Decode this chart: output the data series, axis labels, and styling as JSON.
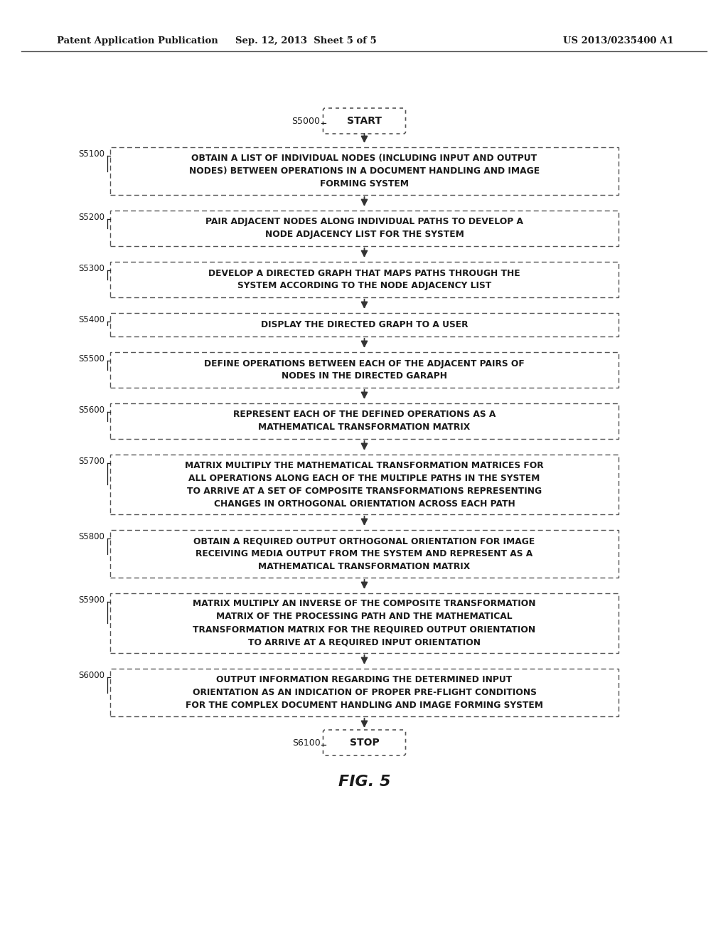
{
  "header_left": "Patent Application Publication",
  "header_mid": "Sep. 12, 2013  Sheet 5 of 5",
  "header_right": "US 2013/0235400 A1",
  "fig_label": "FIG. 5",
  "start_label": "S5000",
  "stop_label": "S6100",
  "background_color": "#ffffff",
  "box_facecolor": "#ffffff",
  "box_edgecolor": "#555555",
  "text_color": "#1a1a1a",
  "arrow_color": "#333333",
  "steps": [
    {
      "label": "S5100",
      "text": "OBTAIN A LIST OF INDIVIDUAL NODES (INCLUDING INPUT AND OUTPUT\nNODES) BETWEEN OPERATIONS IN A DOCUMENT HANDLING AND IMAGE\nFORMING SYSTEM",
      "nlines": 3
    },
    {
      "label": "S5200",
      "text": "PAIR ADJACENT NODES ALONG INDIVIDUAL PATHS TO DEVELOP A\nNODE ADJACENCY LIST FOR THE SYSTEM",
      "nlines": 2
    },
    {
      "label": "S5300",
      "text": "DEVELOP A DIRECTED GRAPH THAT MAPS PATHS THROUGH THE\nSYSTEM ACCORDING TO THE NODE ADJACENCY LIST",
      "nlines": 2
    },
    {
      "label": "S5400",
      "text": "DISPLAY THE DIRECTED GRAPH TO A USER",
      "nlines": 1
    },
    {
      "label": "S5500",
      "text": "DEFINE OPERATIONS BETWEEN EACH OF THE ADJACENT PAIRS OF\nNODES IN THE DIRECTED GARAPH",
      "nlines": 2
    },
    {
      "label": "S5600",
      "text": "REPRESENT EACH OF THE DEFINED OPERATIONS AS A\nMATHEMATICAL TRANSFORMATION MATRIX",
      "nlines": 2
    },
    {
      "label": "S5700",
      "text": "MATRIX MULTIPLY THE MATHEMATICAL TRANSFORMATION MATRICES FOR\nALL OPERATIONS ALONG EACH OF THE MULTIPLE PATHS IN THE SYSTEM\nTO ARRIVE AT A SET OF COMPOSITE TRANSFORMATIONS REPRESENTING\nCHANGES IN ORTHOGONAL ORIENTATION ACROSS EACH PATH",
      "nlines": 4
    },
    {
      "label": "S5800",
      "text": "OBTAIN A REQUIRED OUTPUT ORTHOGONAL ORIENTATION FOR IMAGE\nRECEIVING MEDIA OUTPUT FROM THE SYSTEM AND REPRESENT AS A\nMATHEMATICAL TRANSFORMATION MATRIX",
      "nlines": 3
    },
    {
      "label": "S5900",
      "text": "MATRIX MULTIPLY AN INVERSE OF THE COMPOSITE TRANSFORMATION\nMATRIX OF THE PROCESSING PATH AND THE MATHEMATICAL\nTRANSFORMATION MATRIX FOR THE REQUIRED OUTPUT ORIENTATION\nTO ARRIVE AT A REQUIRED INPUT ORIENTATION",
      "nlines": 4
    },
    {
      "label": "S6000",
      "text": "OUTPUT INFORMATION REGARDING THE DETERMINED INPUT\nORIENTATION AS AN INDICATION OF PROPER PRE-FLIGHT CONDITIONS\nFOR THE COMPLEX DOCUMENT HANDLING AND IMAGE FORMING SYSTEM",
      "nlines": 3
    }
  ]
}
